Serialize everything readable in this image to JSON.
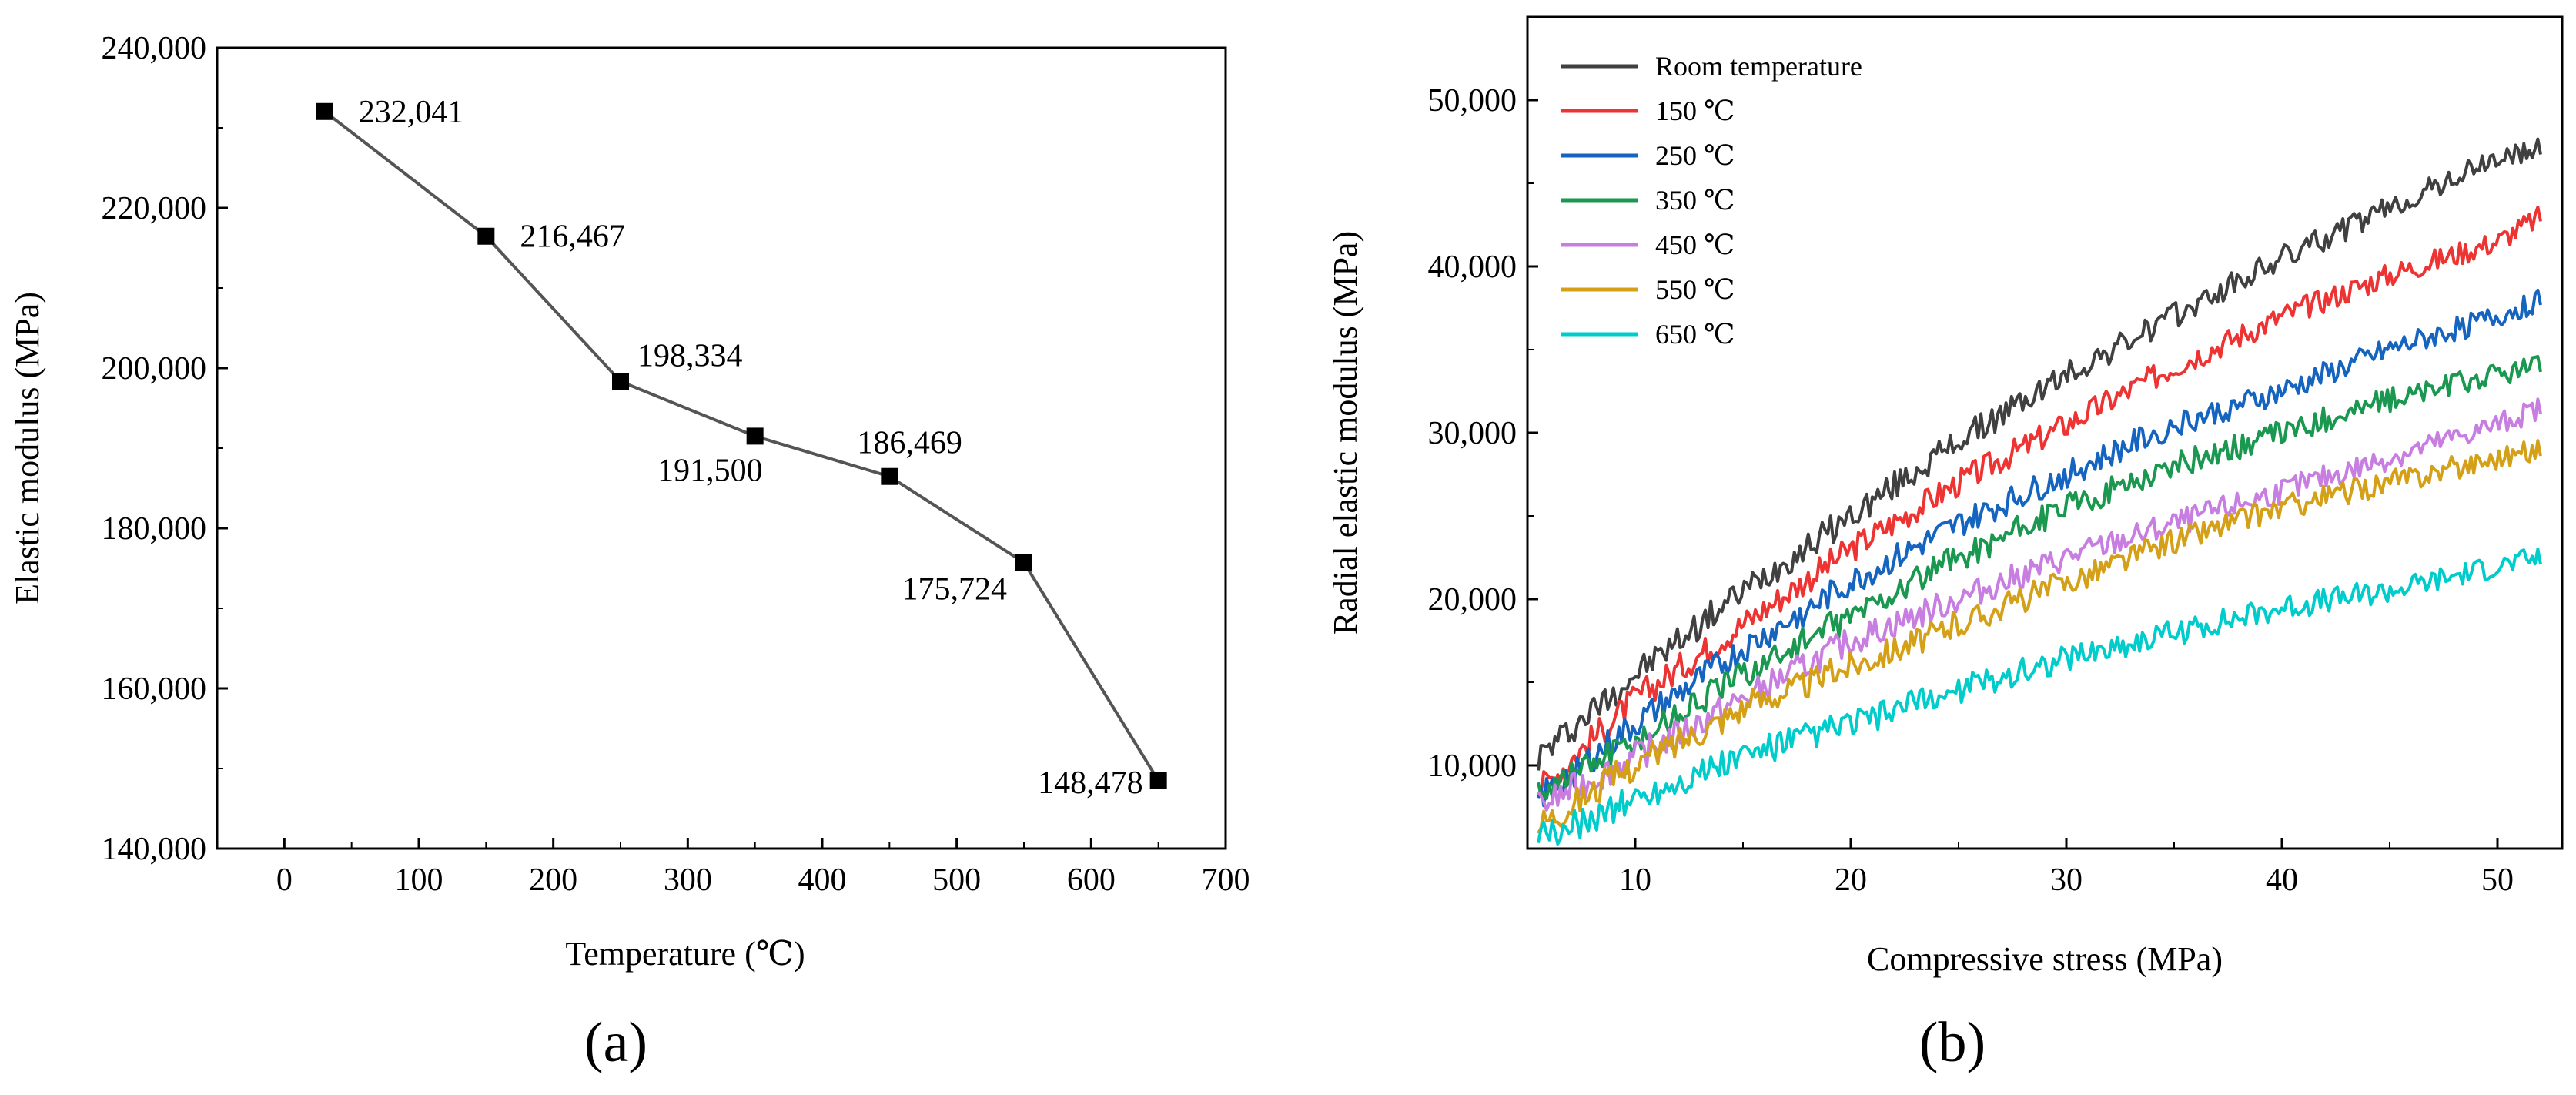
{
  "chart_data": [
    {
      "panel": "(a)",
      "type": "line",
      "xlabel": "Temperature (℃)",
      "ylabel": "Elastic modulus (MPa)",
      "xlim": [
        -50,
        700
      ],
      "ylim": [
        140000,
        240000
      ],
      "xticks": [
        0,
        100,
        200,
        300,
        400,
        500,
        600,
        700
      ],
      "xtick_labels": [
        "0",
        "100",
        "200",
        "300",
        "400",
        "500",
        "600",
        "700"
      ],
      "yticks": [
        140000,
        160000,
        180000,
        200000,
        220000,
        240000
      ],
      "ytick_labels": [
        "140,000",
        "160,000",
        "180,000",
        "200,000",
        "220,000",
        "240,000"
      ],
      "grid": false,
      "marker": "square",
      "line_color": "#555555",
      "x": [
        30,
        150,
        250,
        350,
        450,
        550,
        650
      ],
      "y": [
        232041,
        216467,
        198334,
        191500,
        186469,
        175724,
        148478
      ],
      "data_labels": [
        "232,041",
        "216,467",
        "198,334",
        "191,500",
        "186,469",
        "175,724",
        "148,478"
      ]
    },
    {
      "panel": "(b)",
      "type": "line",
      "xlabel": "Compressive stress (MPa)",
      "ylabel": "Radial elastic modulus  (MPa)",
      "xlim": [
        5,
        53
      ],
      "ylim": [
        5000,
        55000
      ],
      "xticks": [
        10,
        20,
        30,
        40,
        50
      ],
      "xtick_labels": [
        "10",
        "20",
        "30",
        "40",
        "50"
      ],
      "yticks": [
        10000,
        20000,
        30000,
        40000,
        50000
      ],
      "ytick_labels": [
        "10,000",
        "20,000",
        "30,000",
        "40,000",
        "50,000"
      ],
      "grid": false,
      "legend_position": "top-left",
      "x": [
        5.5,
        10,
        15,
        20,
        25,
        30,
        35,
        40,
        45,
        50,
        52
      ],
      "series": [
        {
          "name": "Room temperature",
          "color": "#404040",
          "values": [
            10500,
            15500,
            20500,
            25000,
            29500,
            33500,
            37000,
            40500,
            43500,
            46500,
            47000
          ]
        },
        {
          "name": "150 ℃",
          "color": "#ee3333",
          "values": [
            8500,
            14000,
            18500,
            23000,
            27000,
            30500,
            34000,
            37000,
            39500,
            41500,
            43000
          ]
        },
        {
          "name": "250 ℃",
          "color": "#1565c0",
          "values": [
            8000,
            12500,
            17000,
            21000,
            24500,
            27500,
            30500,
            32500,
            35000,
            37000,
            38000
          ]
        },
        {
          "name": "350 ℃",
          "color": "#1a9850",
          "values": [
            8500,
            11500,
            15500,
            19000,
            22500,
            25500,
            28000,
            30000,
            32000,
            33500,
            34000
          ]
        },
        {
          "name": "450 ℃",
          "color": "#c77ee0",
          "values": [
            7500,
            10500,
            14000,
            17500,
            20000,
            22500,
            24500,
            26500,
            28500,
            30500,
            31500
          ]
        },
        {
          "name": "550 ℃",
          "color": "#d4a017",
          "values": [
            6500,
            10000,
            13500,
            16000,
            18500,
            21000,
            23500,
            25500,
            27000,
            28500,
            29000
          ]
        },
        {
          "name": "650 ℃",
          "color": "#00cccc",
          "values": [
            5500,
            8000,
            10500,
            12500,
            14500,
            16500,
            18000,
            19500,
            20500,
            22000,
            22500
          ]
        }
      ]
    }
  ]
}
